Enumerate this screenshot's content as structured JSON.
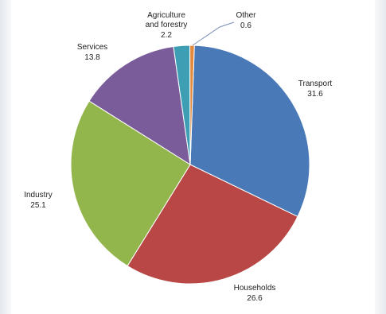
{
  "chart_data": {
    "type": "pie",
    "slices": [
      {
        "label": "Transport",
        "value": 31.6,
        "color": "#4a79b8"
      },
      {
        "label": "Households",
        "value": 26.6,
        "color": "#b94746"
      },
      {
        "label": "Industry",
        "value": 25.1,
        "color": "#93b64c"
      },
      {
        "label": "Services",
        "value": 13.8,
        "color": "#7b5c9b"
      },
      {
        "label": "Agriculture and forestry",
        "value": 2.2,
        "color": "#3e9fb4"
      },
      {
        "label": "Other",
        "value": 0.6,
        "color": "#e48a3c"
      }
    ],
    "label_texts": {
      "transport_name": "Transport",
      "transport_value": "31.6",
      "households_name": "Households",
      "households_value": "26.6",
      "industry_name": "Industry",
      "industry_value": "25.1",
      "services_name": "Services",
      "services_value": "13.8",
      "agriculture_name_line1": "Agriculture",
      "agriculture_name_line2": "and forestry",
      "agriculture_value": "2.2",
      "other_name": "Other",
      "other_value": "0.6"
    }
  }
}
